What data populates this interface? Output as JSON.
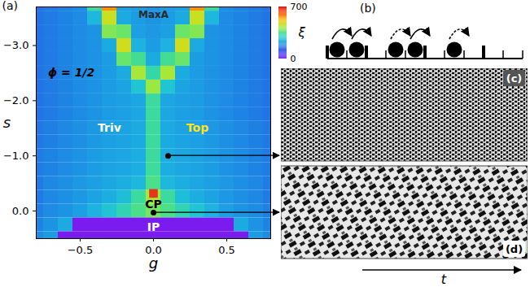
{
  "chart_data": {
    "type": "heatmap",
    "panel_label": "(a)",
    "x_label": "g",
    "y_label": "s",
    "xlim": [
      -0.8,
      0.8
    ],
    "xticks": [
      -0.5,
      0,
      0.5
    ],
    "ylim": [
      0.5,
      -3.7
    ],
    "yticks": [
      -3,
      -2,
      -1,
      0
    ],
    "x": [
      -0.8,
      -0.7,
      -0.6,
      -0.5,
      -0.4,
      -0.3,
      -0.2,
      -0.1,
      0,
      0.1,
      0.2,
      0.3,
      0.4,
      0.5,
      0.6,
      0.7,
      0.8
    ],
    "y": [
      -3.75,
      -3.5,
      -3.25,
      -3,
      -2.75,
      -2.5,
      -2.25,
      -2,
      -1.75,
      -1.5,
      -1.25,
      -1,
      -0.75,
      -0.5,
      -0.25,
      0,
      0.25,
      0.5
    ],
    "values": [
      [
        160,
        170,
        180,
        190,
        330,
        560,
        215,
        210,
        200,
        210,
        215,
        560,
        330,
        190,
        180,
        170,
        160
      ],
      [
        160,
        170,
        180,
        190,
        250,
        460,
        230,
        210,
        200,
        210,
        230,
        460,
        250,
        190,
        180,
        170,
        160
      ],
      [
        160,
        170,
        180,
        190,
        200,
        400,
        380,
        215,
        205,
        215,
        380,
        400,
        200,
        190,
        180,
        170,
        160
      ],
      [
        160,
        170,
        180,
        190,
        200,
        230,
        470,
        240,
        210,
        240,
        470,
        230,
        200,
        190,
        180,
        170,
        160
      ],
      [
        160,
        170,
        180,
        190,
        200,
        210,
        380,
        340,
        230,
        340,
        380,
        210,
        200,
        190,
        180,
        170,
        160
      ],
      [
        160,
        170,
        180,
        190,
        200,
        210,
        230,
        430,
        320,
        430,
        230,
        210,
        200,
        190,
        180,
        170,
        160
      ],
      [
        160,
        170,
        180,
        190,
        200,
        210,
        220,
        270,
        420,
        270,
        220,
        210,
        200,
        190,
        180,
        170,
        160
      ],
      [
        160,
        170,
        180,
        190,
        200,
        210,
        215,
        225,
        330,
        225,
        215,
        210,
        200,
        190,
        180,
        170,
        160
      ],
      [
        160,
        170,
        180,
        190,
        200,
        210,
        215,
        225,
        330,
        225,
        215,
        210,
        200,
        190,
        180,
        170,
        160
      ],
      [
        165,
        175,
        185,
        195,
        205,
        215,
        220,
        230,
        330,
        230,
        220,
        215,
        205,
        195,
        185,
        175,
        165
      ],
      [
        165,
        175,
        185,
        195,
        205,
        215,
        220,
        230,
        330,
        230,
        220,
        215,
        205,
        195,
        185,
        175,
        165
      ],
      [
        170,
        180,
        190,
        200,
        210,
        220,
        225,
        235,
        330,
        235,
        225,
        220,
        210,
        200,
        190,
        180,
        170
      ],
      [
        170,
        180,
        190,
        200,
        210,
        220,
        225,
        235,
        335,
        235,
        225,
        220,
        210,
        200,
        190,
        180,
        170
      ],
      [
        170,
        185,
        195,
        205,
        215,
        225,
        235,
        250,
        350,
        250,
        235,
        225,
        215,
        205,
        195,
        185,
        170
      ],
      [
        170,
        185,
        195,
        205,
        220,
        235,
        260,
        330,
        430,
        330,
        260,
        235,
        220,
        205,
        195,
        185,
        170
      ],
      [
        175,
        190,
        200,
        215,
        240,
        270,
        310,
        350,
        390,
        350,
        310,
        270,
        240,
        215,
        200,
        190,
        175
      ],
      [
        180,
        200,
        230,
        0,
        0,
        0,
        0,
        0,
        0,
        0,
        0,
        0,
        0,
        0,
        230,
        200,
        180
      ],
      [
        190,
        210,
        0,
        0,
        0,
        0,
        0,
        0,
        0,
        0,
        0,
        0,
        0,
        0,
        0,
        210,
        190
      ]
    ],
    "colorbar": {
      "label": "ξ",
      "range": [
        0,
        700
      ],
      "ticks": [
        0,
        700
      ]
    },
    "annotations": [
      {
        "text": "MaxA",
        "x": 0,
        "y": -3.56,
        "color": "#2a2a2a"
      },
      {
        "text": "ϕ = 1/2",
        "x": -0.56,
        "y": -2.5,
        "color": "#000000"
      },
      {
        "text": "Triv",
        "x": -0.3,
        "y": -1.5,
        "color": "#ffffff"
      },
      {
        "text": "Top",
        "x": 0.3,
        "y": -1.5,
        "color": "#ffe21a"
      },
      {
        "text": "CP",
        "x": 0,
        "y": -0.12,
        "color": "#000000"
      },
      {
        "text": "IP",
        "x": 0,
        "y": 0.3,
        "color": "#ffffff"
      }
    ],
    "markers": [
      {
        "x": 0,
        "y": -0.32,
        "marker": "square",
        "color": "#e8341c"
      }
    ],
    "points": [
      {
        "x": 0.1,
        "y": -1.0
      },
      {
        "x": 0,
        "y": 0.03
      }
    ]
  },
  "diagram": {
    "schematic": {
      "label": "(b)"
    },
    "panels": [
      {
        "label": "(c)"
      },
      {
        "label": "(d)"
      }
    ],
    "time_axis": {
      "label": "t"
    }
  }
}
